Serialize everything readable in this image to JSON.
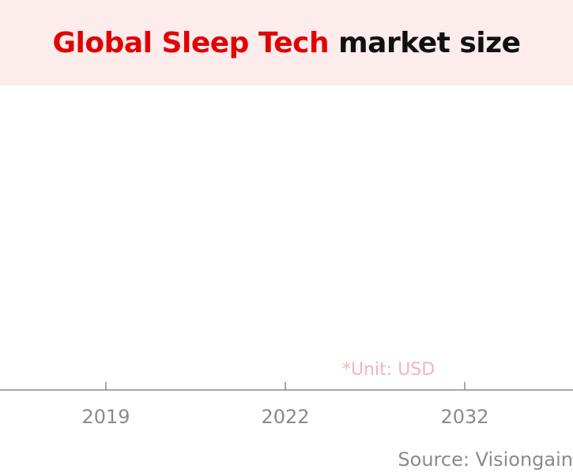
{
  "header": {
    "title_highlight": "Global Sleep Tech",
    "title_rest": "market size",
    "highlight_color": "#e00000",
    "background_color": "#fdecec"
  },
  "chart_data": {
    "type": "bar",
    "title": "Global Sleep Tech market size",
    "categories": [
      "2019",
      "2022",
      "2032"
    ],
    "values": [
      null,
      null,
      null
    ],
    "unit_note": "*Unit: USD",
    "xlabel": "",
    "ylabel": "",
    "grid": false
  },
  "footer": {
    "source": "Source: Visiongain"
  }
}
